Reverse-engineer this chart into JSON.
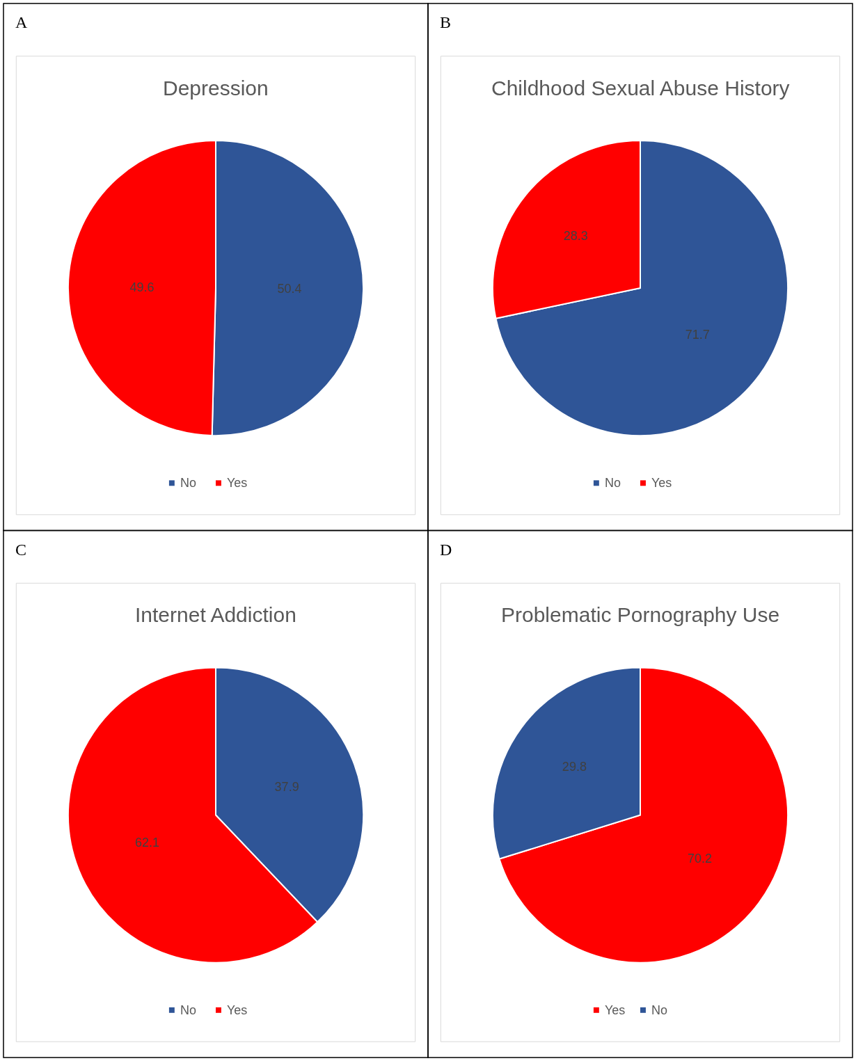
{
  "chart_data": [
    {
      "type": "pie",
      "title": "Depression",
      "annotations": [
        "A"
      ],
      "categories": [
        "No",
        "Yes"
      ],
      "values": [
        50.4,
        49.6
      ],
      "colors": [
        "#2f5597",
        "#ff0000"
      ],
      "data_labels": true,
      "legend": "bottom"
    },
    {
      "type": "pie",
      "title": "Childhood Sexual Abuse History",
      "annotations": [
        "B"
      ],
      "categories": [
        "No",
        "Yes"
      ],
      "values": [
        71.7,
        28.3
      ],
      "colors": [
        "#2f5597",
        "#ff0000"
      ],
      "data_labels": true,
      "legend": "bottom"
    },
    {
      "type": "pie",
      "title": "Internet Addiction",
      "annotations": [
        "C"
      ],
      "categories": [
        "No",
        "Yes"
      ],
      "values": [
        37.9,
        62.1
      ],
      "colors": [
        "#2f5597",
        "#ff0000"
      ],
      "data_labels": true,
      "legend": "bottom"
    },
    {
      "type": "pie",
      "title": "Problematic Pornography Use",
      "annotations": [
        "D"
      ],
      "categories": [
        "Yes",
        "No"
      ],
      "values": [
        70.2,
        29.8
      ],
      "colors": [
        "#ff0000",
        "#2f5597"
      ],
      "data_labels": true,
      "legend": "bottom"
    }
  ]
}
